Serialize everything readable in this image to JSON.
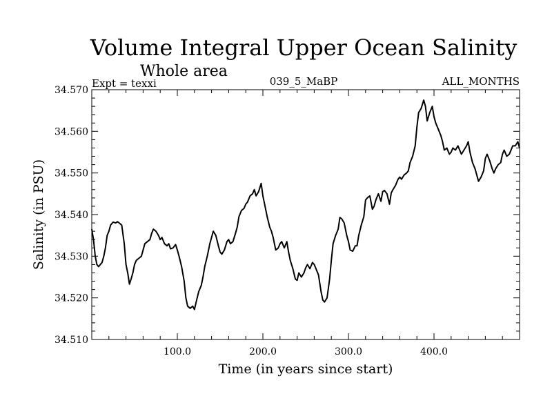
{
  "chart_data": {
    "type": "line",
    "title": "Volume Integral Upper Ocean Salinity",
    "subtitle": "Whole area",
    "annotations": {
      "left": "Expt = texxi",
      "center": "039_5_MaBP",
      "right": "ALL_MONTHS"
    },
    "xlabel": "Time (in years since start)",
    "ylabel": "Salinity (in PSU)",
    "xlim": [
      0,
      500
    ],
    "ylim": [
      34.51,
      34.57
    ],
    "xticks": [
      100,
      200,
      300,
      400
    ],
    "xtick_labels": [
      "100.0",
      "200.0",
      "300.0",
      "400.0"
    ],
    "yticks": [
      34.51,
      34.52,
      34.53,
      34.54,
      34.55,
      34.56,
      34.57
    ],
    "ytick_labels": [
      "34.510",
      "34.520",
      "34.530",
      "34.540",
      "34.550",
      "34.560",
      "34.570"
    ],
    "grid": false,
    "series": [
      {
        "name": "salinity",
        "x": [
          0,
          2,
          4,
          6,
          8,
          10,
          12,
          14,
          16,
          18,
          20,
          22,
          25,
          28,
          30,
          32,
          35,
          38,
          40,
          42,
          44,
          46,
          48,
          50,
          52,
          55,
          58,
          60,
          62,
          65,
          68,
          70,
          72,
          75,
          78,
          80,
          82,
          85,
          88,
          90,
          92,
          95,
          98,
          100,
          102,
          105,
          108,
          110,
          112,
          115,
          118,
          120,
          122,
          125,
          128,
          130,
          132,
          135,
          138,
          140,
          142,
          145,
          148,
          150,
          152,
          155,
          158,
          160,
          162,
          165,
          168,
          170,
          172,
          175,
          178,
          180,
          182,
          185,
          188,
          190,
          192,
          195,
          198,
          200,
          202,
          205,
          208,
          210,
          212,
          215,
          218,
          220,
          222,
          225,
          228,
          230,
          232,
          235,
          238,
          240,
          242,
          245,
          248,
          250,
          252,
          255,
          258,
          260,
          262,
          265,
          268,
          270,
          272,
          275,
          278,
          280,
          282,
          285,
          288,
          290,
          292,
          295,
          298,
          300,
          302,
          305,
          308,
          310,
          312,
          315,
          318,
          320,
          322,
          325,
          328,
          330,
          332,
          335,
          338,
          340,
          342,
          345,
          348,
          350,
          352,
          355,
          358,
          360,
          362,
          365,
          368,
          370,
          372,
          375,
          378,
          380,
          382,
          385,
          388,
          390,
          392,
          395,
          398,
          400,
          402,
          405,
          408,
          410,
          412,
          415,
          418,
          420,
          422,
          425,
          428,
          430,
          432,
          435,
          438,
          440,
          442,
          445,
          448,
          450,
          452,
          455,
          458,
          460,
          462,
          465,
          468,
          470,
          472,
          475,
          478,
          480,
          482,
          485,
          488,
          490,
          492,
          495,
          498,
          500
        ],
        "values": [
          34.5365,
          34.534,
          34.53,
          34.528,
          34.5275,
          34.528,
          34.5285,
          34.53,
          34.532,
          34.535,
          34.536,
          34.5375,
          34.5382,
          34.538,
          34.5383,
          34.538,
          34.5375,
          34.533,
          34.528,
          34.526,
          34.5233,
          34.5245,
          34.526,
          34.528,
          34.529,
          34.5295,
          34.53,
          34.5315,
          34.533,
          34.5335,
          34.534,
          34.5355,
          34.5365,
          34.536,
          34.535,
          34.534,
          34.5345,
          34.533,
          34.5325,
          34.533,
          34.5318,
          34.532,
          34.5328,
          34.5315,
          34.53,
          34.5275,
          34.524,
          34.52,
          34.518,
          34.5175,
          34.518,
          34.5172,
          34.519,
          34.5215,
          34.523,
          34.525,
          34.5275,
          34.53,
          34.533,
          34.5345,
          34.536,
          34.535,
          34.5325,
          34.531,
          34.5305,
          34.5315,
          34.5335,
          34.534,
          34.533,
          34.5335,
          34.5355,
          34.537,
          34.5395,
          34.541,
          34.5415,
          34.5425,
          34.543,
          34.5445,
          34.545,
          34.546,
          34.5445,
          34.5455,
          34.5475,
          34.5445,
          34.5425,
          34.5395,
          34.537,
          34.536,
          34.5345,
          34.5315,
          34.532,
          34.533,
          34.5335,
          34.532,
          34.5335,
          34.531,
          34.529,
          34.527,
          34.5245,
          34.5242,
          34.526,
          34.525,
          34.526,
          34.5272,
          34.528,
          34.527,
          34.5285,
          34.528,
          34.527,
          34.5255,
          34.5215,
          34.5195,
          34.519,
          34.52,
          34.5245,
          34.529,
          34.533,
          34.535,
          34.5365,
          34.5393,
          34.539,
          34.538,
          34.535,
          34.5335,
          34.5315,
          34.5312,
          34.5325,
          34.5325,
          34.535,
          34.5375,
          34.5395,
          34.5435,
          34.544,
          34.5445,
          34.5413,
          34.542,
          34.5435,
          34.545,
          34.5432,
          34.5455,
          34.5458,
          34.545,
          34.5425,
          34.5452,
          34.546,
          34.547,
          34.5485,
          34.549,
          34.5485,
          34.5495,
          34.55,
          34.5505,
          34.5525,
          34.554,
          34.5565,
          34.561,
          34.5645,
          34.5655,
          34.5675,
          34.566,
          34.5625,
          34.5645,
          34.566,
          34.5635,
          34.562,
          34.5605,
          34.559,
          34.5575,
          34.5555,
          34.556,
          34.5545,
          34.555,
          34.556,
          34.5555,
          34.5565,
          34.5555,
          34.5545,
          34.5555,
          34.5565,
          34.5575,
          34.555,
          34.5525,
          34.551,
          34.5495,
          34.548,
          34.549,
          34.5505,
          34.5535,
          34.5545,
          34.553,
          34.551,
          34.55,
          34.551,
          34.552,
          34.5525,
          34.5545,
          34.5555,
          34.554,
          34.5545,
          34.5555,
          34.5565,
          34.5565,
          34.5575,
          34.556
        ]
      }
    ]
  }
}
